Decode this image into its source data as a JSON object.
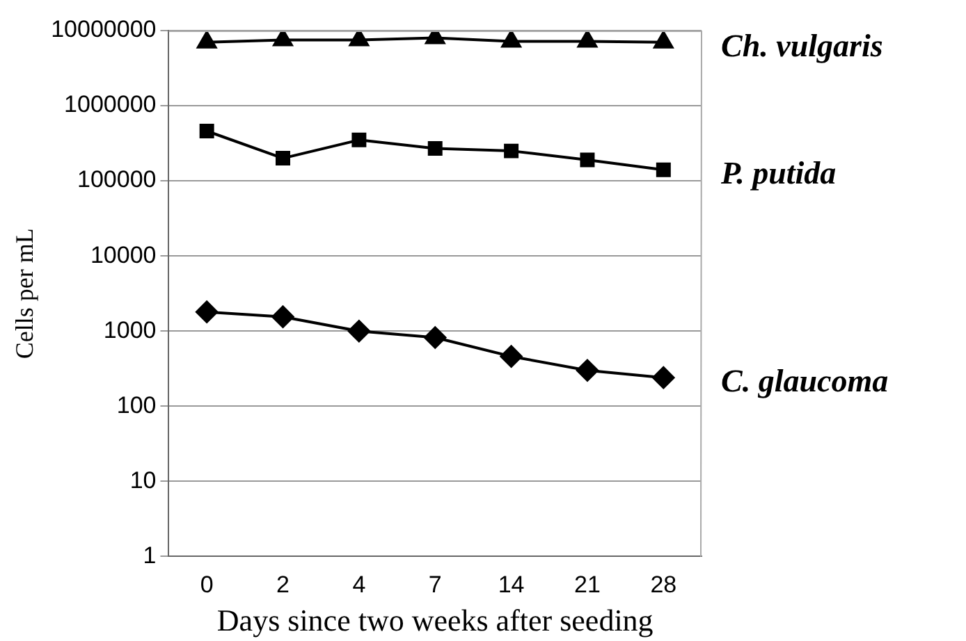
{
  "chart_data": {
    "type": "line",
    "xlabel": "Days since two weeks after seeding",
    "ylabel": "Cells per mL",
    "categories": [
      "0",
      "2",
      "4",
      "7",
      "14",
      "21",
      "28"
    ],
    "log": "y",
    "ylim": [
      1,
      10000000
    ],
    "yticks": [
      1,
      10,
      100,
      1000,
      10000,
      100000,
      1000000,
      10000000
    ],
    "grid": "y",
    "legend": false,
    "series": [
      {
        "name": "Ch. vulgaris",
        "color": "#000000",
        "marker": "triangle",
        "values": [
          7000000,
          7500000,
          7500000,
          8000000,
          7200000,
          7200000,
          7000000
        ]
      },
      {
        "name": "P. putida",
        "color": "#000000",
        "marker": "square",
        "values": [
          460000,
          200000,
          350000,
          270000,
          250000,
          190000,
          140000
        ]
      },
      {
        "name": "C. glaucoma",
        "color": "#000000",
        "marker": "diamond",
        "values": [
          1800,
          1550,
          1000,
          820,
          460,
          300,
          240
        ]
      }
    ]
  }
}
